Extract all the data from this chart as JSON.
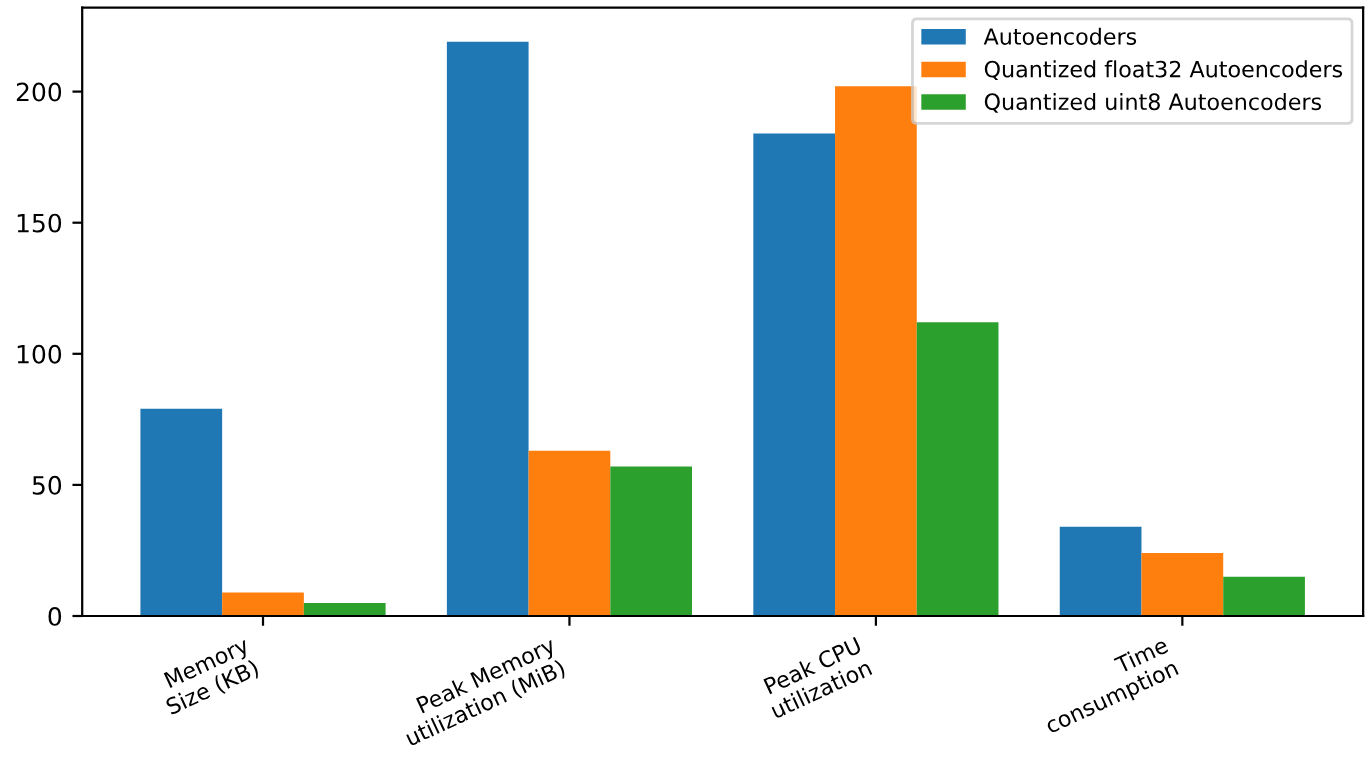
{
  "chart_data": {
    "type": "bar",
    "categories": [
      "Memory\nSize (KB)",
      "Peak Memory\nutilization (MiB)",
      "Peak CPU\nutilization",
      "Time\nconsumption"
    ],
    "series": [
      {
        "name": "Autoencoders",
        "color": "#1f77b4",
        "values": [
          79,
          219,
          184,
          34
        ]
      },
      {
        "name": "Quantized float32 Autoencoders",
        "color": "#ff7f0e",
        "values": [
          9,
          63,
          202,
          24
        ]
      },
      {
        "name": "Quantized uint8 Autoencoders",
        "color": "#2ca02c",
        "values": [
          5,
          57,
          112,
          15
        ]
      }
    ],
    "ylim": [
      0,
      232
    ],
    "yticks": [
      0,
      50,
      100,
      150,
      200
    ],
    "legend": "top right",
    "grid": false
  }
}
